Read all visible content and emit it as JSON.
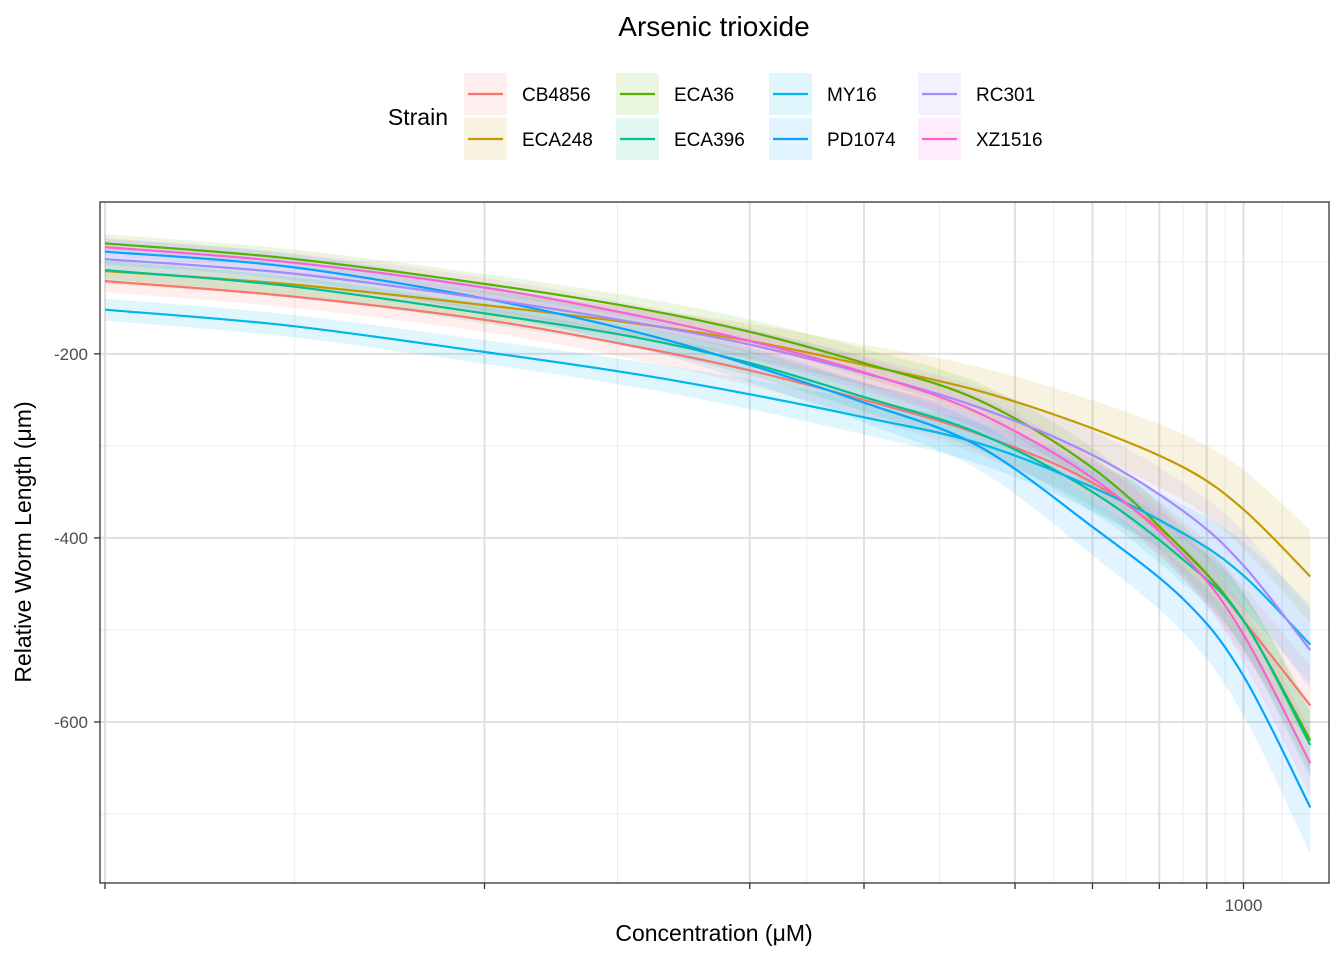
{
  "chart_data": {
    "type": "line",
    "title": "Arsenic trioxide",
    "xlabel": "Concentration (μM)",
    "ylabel": "Relative Worm Length (μm)",
    "x_scale": "log10",
    "xlim": [
      0.97,
      1680
    ],
    "ylim": [
      -775,
      -35
    ],
    "x_ticks": [
      {
        "value": 1,
        "label": ""
      },
      {
        "value": 10,
        "label": ""
      },
      {
        "value": 50,
        "label": ""
      },
      {
        "value": 100,
        "label": ""
      },
      {
        "value": 250,
        "label": ""
      },
      {
        "value": 400,
        "label": ""
      },
      {
        "value": 600,
        "label": ""
      },
      {
        "value": 800,
        "label": ""
      },
      {
        "value": 1000,
        "label": "1000"
      }
    ],
    "x_minor_grid": [
      3.16,
      22.4,
      70.7,
      158,
      316,
      490,
      693,
      894,
      1265
    ],
    "y_ticks": [
      {
        "value": -200,
        "label": "-200"
      },
      {
        "value": -400,
        "label": "-400"
      },
      {
        "value": -600,
        "label": "-600"
      }
    ],
    "y_minor_grid": [
      -100,
      -300,
      -500,
      -700
    ],
    "legend": {
      "title": "Strain",
      "position": "top"
    },
    "x": [
      1,
      3,
      10,
      25,
      50,
      100,
      200,
      400,
      700,
      1000,
      1500
    ],
    "series": [
      {
        "name": "CB4856",
        "color": "#F8766D",
        "band": 12,
        "values": [
          -121,
          -137,
          -163,
          -192,
          -218,
          -250,
          -287,
          -340,
          -414,
          -490,
          -582
        ]
      },
      {
        "name": "ECA248",
        "color": "#C49A00",
        "band": 14,
        "values": [
          -110,
          -124,
          -147,
          -167,
          -186,
          -212,
          -240,
          -281,
          -324,
          -369,
          -442
        ]
      },
      {
        "name": "ECA36",
        "color": "#53B400",
        "band": 10,
        "values": [
          -80,
          -96,
          -124,
          -150,
          -176,
          -210,
          -250,
          -324,
          -415,
          -490,
          -620
        ]
      },
      {
        "name": "ECA396",
        "color": "#00C094",
        "band": 10,
        "values": [
          -109,
          -126,
          -156,
          -182,
          -210,
          -247,
          -286,
          -350,
          -425,
          -490,
          -625
        ]
      },
      {
        "name": "MY16",
        "color": "#00B6EB",
        "band": 12,
        "values": [
          -152,
          -169,
          -198,
          -222,
          -244,
          -269,
          -297,
          -345,
          -396,
          -441,
          -516
        ]
      },
      {
        "name": "PD1074",
        "color": "#06A4FF",
        "band": 14,
        "values": [
          -89,
          -105,
          -140,
          -176,
          -212,
          -253,
          -300,
          -388,
          -468,
          -550,
          -693
        ]
      },
      {
        "name": "RC301",
        "color": "#A58AFF",
        "band": 12,
        "values": [
          -97,
          -112,
          -140,
          -166,
          -190,
          -221,
          -258,
          -310,
          -372,
          -430,
          -522
        ]
      },
      {
        "name": "XZ1516",
        "color": "#FB61D7",
        "band": 10,
        "values": [
          -84,
          -100,
          -128,
          -158,
          -186,
          -220,
          -264,
          -335,
          -420,
          -505,
          -645
        ]
      }
    ]
  }
}
